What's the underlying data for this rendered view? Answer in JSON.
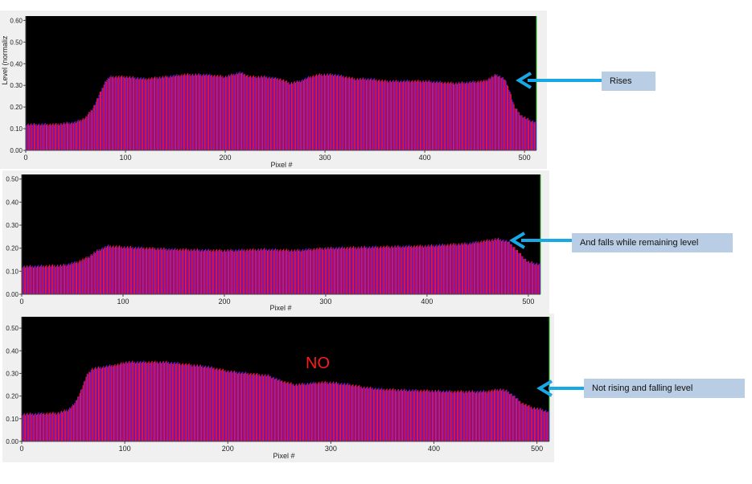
{
  "chart_data": [
    {
      "type": "bar",
      "xlabel": "Pixel #",
      "ylabel": "Level (normaliz",
      "xlim": [
        0,
        512
      ],
      "ylim": [
        0,
        0.62
      ],
      "yticks": [
        "0.00",
        "0.10",
        "0.20",
        "0.30",
        "0.40",
        "0.50",
        "0.60"
      ],
      "xticks": [
        "0",
        "100",
        "200",
        "300",
        "400",
        "500"
      ],
      "profile": [
        [
          0,
          0.12
        ],
        [
          30,
          0.12
        ],
        [
          50,
          0.13
        ],
        [
          60,
          0.15
        ],
        [
          68,
          0.2
        ],
        [
          75,
          0.27
        ],
        [
          80,
          0.32
        ],
        [
          85,
          0.34
        ],
        [
          100,
          0.34
        ],
        [
          120,
          0.33
        ],
        [
          140,
          0.34
        ],
        [
          160,
          0.35
        ],
        [
          180,
          0.35
        ],
        [
          200,
          0.34
        ],
        [
          215,
          0.36
        ],
        [
          225,
          0.34
        ],
        [
          240,
          0.34
        ],
        [
          255,
          0.33
        ],
        [
          265,
          0.31
        ],
        [
          275,
          0.32
        ],
        [
          285,
          0.34
        ],
        [
          295,
          0.35
        ],
        [
          310,
          0.35
        ],
        [
          320,
          0.34
        ],
        [
          330,
          0.33
        ],
        [
          345,
          0.33
        ],
        [
          360,
          0.32
        ],
        [
          400,
          0.32
        ],
        [
          430,
          0.31
        ],
        [
          460,
          0.32
        ],
        [
          472,
          0.35
        ],
        [
          480,
          0.33
        ],
        [
          485,
          0.28
        ],
        [
          490,
          0.2
        ],
        [
          497,
          0.16
        ],
        [
          505,
          0.14
        ],
        [
          512,
          0.13
        ]
      ]
    },
    {
      "type": "bar",
      "xlabel": "Pixel #",
      "ylabel": "",
      "xlim": [
        0,
        512
      ],
      "ylim": [
        0,
        0.52
      ],
      "yticks": [
        "0.00",
        "0.10",
        "0.20",
        "0.30",
        "0.40",
        "0.50"
      ],
      "xticks": [
        "0",
        "100",
        "200",
        "300",
        "400",
        "500"
      ],
      "profile": [
        [
          0,
          0.12
        ],
        [
          40,
          0.125
        ],
        [
          55,
          0.14
        ],
        [
          65,
          0.16
        ],
        [
          75,
          0.19
        ],
        [
          85,
          0.21
        ],
        [
          100,
          0.205
        ],
        [
          150,
          0.195
        ],
        [
          200,
          0.19
        ],
        [
          240,
          0.195
        ],
        [
          270,
          0.19
        ],
        [
          300,
          0.2
        ],
        [
          350,
          0.205
        ],
        [
          400,
          0.21
        ],
        [
          440,
          0.22
        ],
        [
          470,
          0.24
        ],
        [
          480,
          0.23
        ],
        [
          487,
          0.2
        ],
        [
          493,
          0.17
        ],
        [
          500,
          0.14
        ],
        [
          512,
          0.13
        ]
      ]
    },
    {
      "type": "bar",
      "xlabel": "Pixel #",
      "ylabel": "",
      "xlim": [
        0,
        512
      ],
      "ylim": [
        0,
        0.55
      ],
      "yticks": [
        "0.00",
        "0.10",
        "0.20",
        "0.30",
        "0.40",
        "0.50"
      ],
      "xticks": [
        "0",
        "100",
        "200",
        "300",
        "400",
        "500"
      ],
      "profile": [
        [
          0,
          0.12
        ],
        [
          35,
          0.125
        ],
        [
          45,
          0.14
        ],
        [
          52,
          0.17
        ],
        [
          58,
          0.23
        ],
        [
          63,
          0.29
        ],
        [
          68,
          0.32
        ],
        [
          80,
          0.33
        ],
        [
          95,
          0.34
        ],
        [
          100,
          0.35
        ],
        [
          120,
          0.35
        ],
        [
          140,
          0.35
        ],
        [
          160,
          0.34
        ],
        [
          180,
          0.33
        ],
        [
          200,
          0.31
        ],
        [
          220,
          0.3
        ],
        [
          240,
          0.29
        ],
        [
          250,
          0.27
        ],
        [
          265,
          0.25
        ],
        [
          290,
          0.26
        ],
        [
          300,
          0.26
        ],
        [
          320,
          0.25
        ],
        [
          330,
          0.24
        ],
        [
          350,
          0.23
        ],
        [
          380,
          0.225
        ],
        [
          420,
          0.22
        ],
        [
          450,
          0.22
        ],
        [
          465,
          0.23
        ],
        [
          472,
          0.22
        ],
        [
          478,
          0.2
        ],
        [
          485,
          0.17
        ],
        [
          495,
          0.15
        ],
        [
          505,
          0.14
        ],
        [
          512,
          0.13
        ]
      ]
    }
  ],
  "annotations": {
    "note1": "Rises",
    "note2": "And falls while remaining level",
    "note3": "Not rising and falling level",
    "no_label": "NO"
  },
  "colors": {
    "plot_bg": "#000000",
    "bar_red": "#e8154a",
    "bar_blue": "#5a1cf0",
    "arrow": "#18a8e6",
    "note_bg": "#b9cde4"
  }
}
